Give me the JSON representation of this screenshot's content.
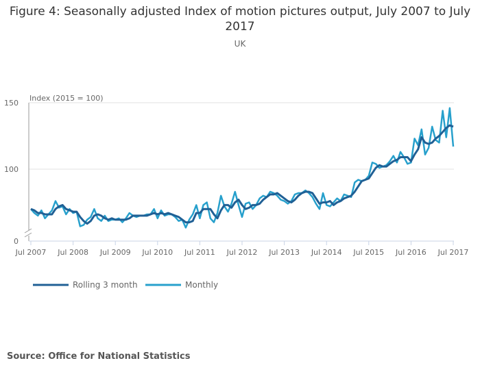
{
  "chart_data": {
    "type": "line",
    "title": "Figure 4: Seasonally adjusted Index of motion pictures output, July 2007 to July 2017",
    "subtitle": "UK",
    "ylabel": "Index (2015 = 100)",
    "y_ticks": [
      0,
      100,
      150
    ],
    "x_ticks": [
      "Jul 2007",
      "Jul 2008",
      "Jul 2009",
      "Jul 2010",
      "Jul 2011",
      "Jul 2012",
      "Jul 2013",
      "Jul 2014",
      "Jul 2015",
      "Jul 2016",
      "Jul 2017"
    ],
    "x_start": "Jul 2007",
    "x_end": "Jul 2017",
    "axis_break": true,
    "grid": true,
    "legend": "bottom-left",
    "series": [
      {
        "name": "Rolling 3 month",
        "color": "#206095",
        "values": [
          70,
          69,
          67,
          67,
          66,
          66,
          66,
          70,
          72,
          73,
          70,
          69,
          68,
          68,
          64,
          61,
          59,
          61,
          65,
          66,
          65,
          63,
          62,
          63,
          62,
          62,
          62,
          62,
          63,
          65,
          65,
          65,
          65,
          65,
          66,
          67,
          66,
          67,
          66,
          67,
          66,
          65,
          64,
          62,
          60,
          60,
          61,
          67,
          67,
          70,
          70,
          70,
          66,
          63,
          69,
          73,
          73,
          71,
          75,
          77,
          73,
          70,
          71,
          73,
          73,
          74,
          77,
          79,
          81,
          81,
          82,
          80,
          78,
          76,
          75,
          77,
          80,
          82,
          83,
          83,
          82,
          78,
          74,
          75,
          75,
          76,
          73,
          75,
          76,
          78,
          79,
          80,
          83,
          87,
          91,
          92,
          93,
          97,
          101,
          103,
          102,
          102,
          104,
          106,
          107,
          109,
          109,
          109,
          106,
          111,
          115,
          124,
          120,
          119,
          120,
          123,
          125,
          128,
          131,
          133,
          132
        ]
      },
      {
        "name": "Monthly",
        "color": "#27a0cc",
        "values": [
          70,
          67,
          65,
          69,
          63,
          66,
          69,
          76,
          71,
          72,
          66,
          70,
          67,
          68,
          57,
          58,
          62,
          64,
          70,
          63,
          61,
          65,
          61,
          62,
          62,
          63,
          60,
          63,
          67,
          65,
          64,
          65,
          65,
          66,
          66,
          70,
          63,
          69,
          65,
          66,
          66,
          64,
          61,
          62,
          56,
          62,
          66,
          73,
          63,
          73,
          75,
          63,
          60,
          67,
          80,
          72,
          68,
          74,
          83,
          73,
          64,
          74,
          75,
          70,
          73,
          78,
          80,
          79,
          83,
          82,
          80,
          77,
          76,
          74,
          76,
          81,
          82,
          82,
          84,
          82,
          79,
          74,
          70,
          82,
          73,
          72,
          75,
          78,
          76,
          81,
          80,
          79,
          90,
          92,
          91,
          92,
          95,
          105,
          104,
          101,
          102,
          103,
          106,
          110,
          105,
          113,
          109,
          104,
          105,
          123,
          118,
          130,
          111,
          116,
          132,
          122,
          120,
          144,
          124,
          146,
          117
        ]
      }
    ]
  },
  "source": "Source: Office for National Statistics"
}
